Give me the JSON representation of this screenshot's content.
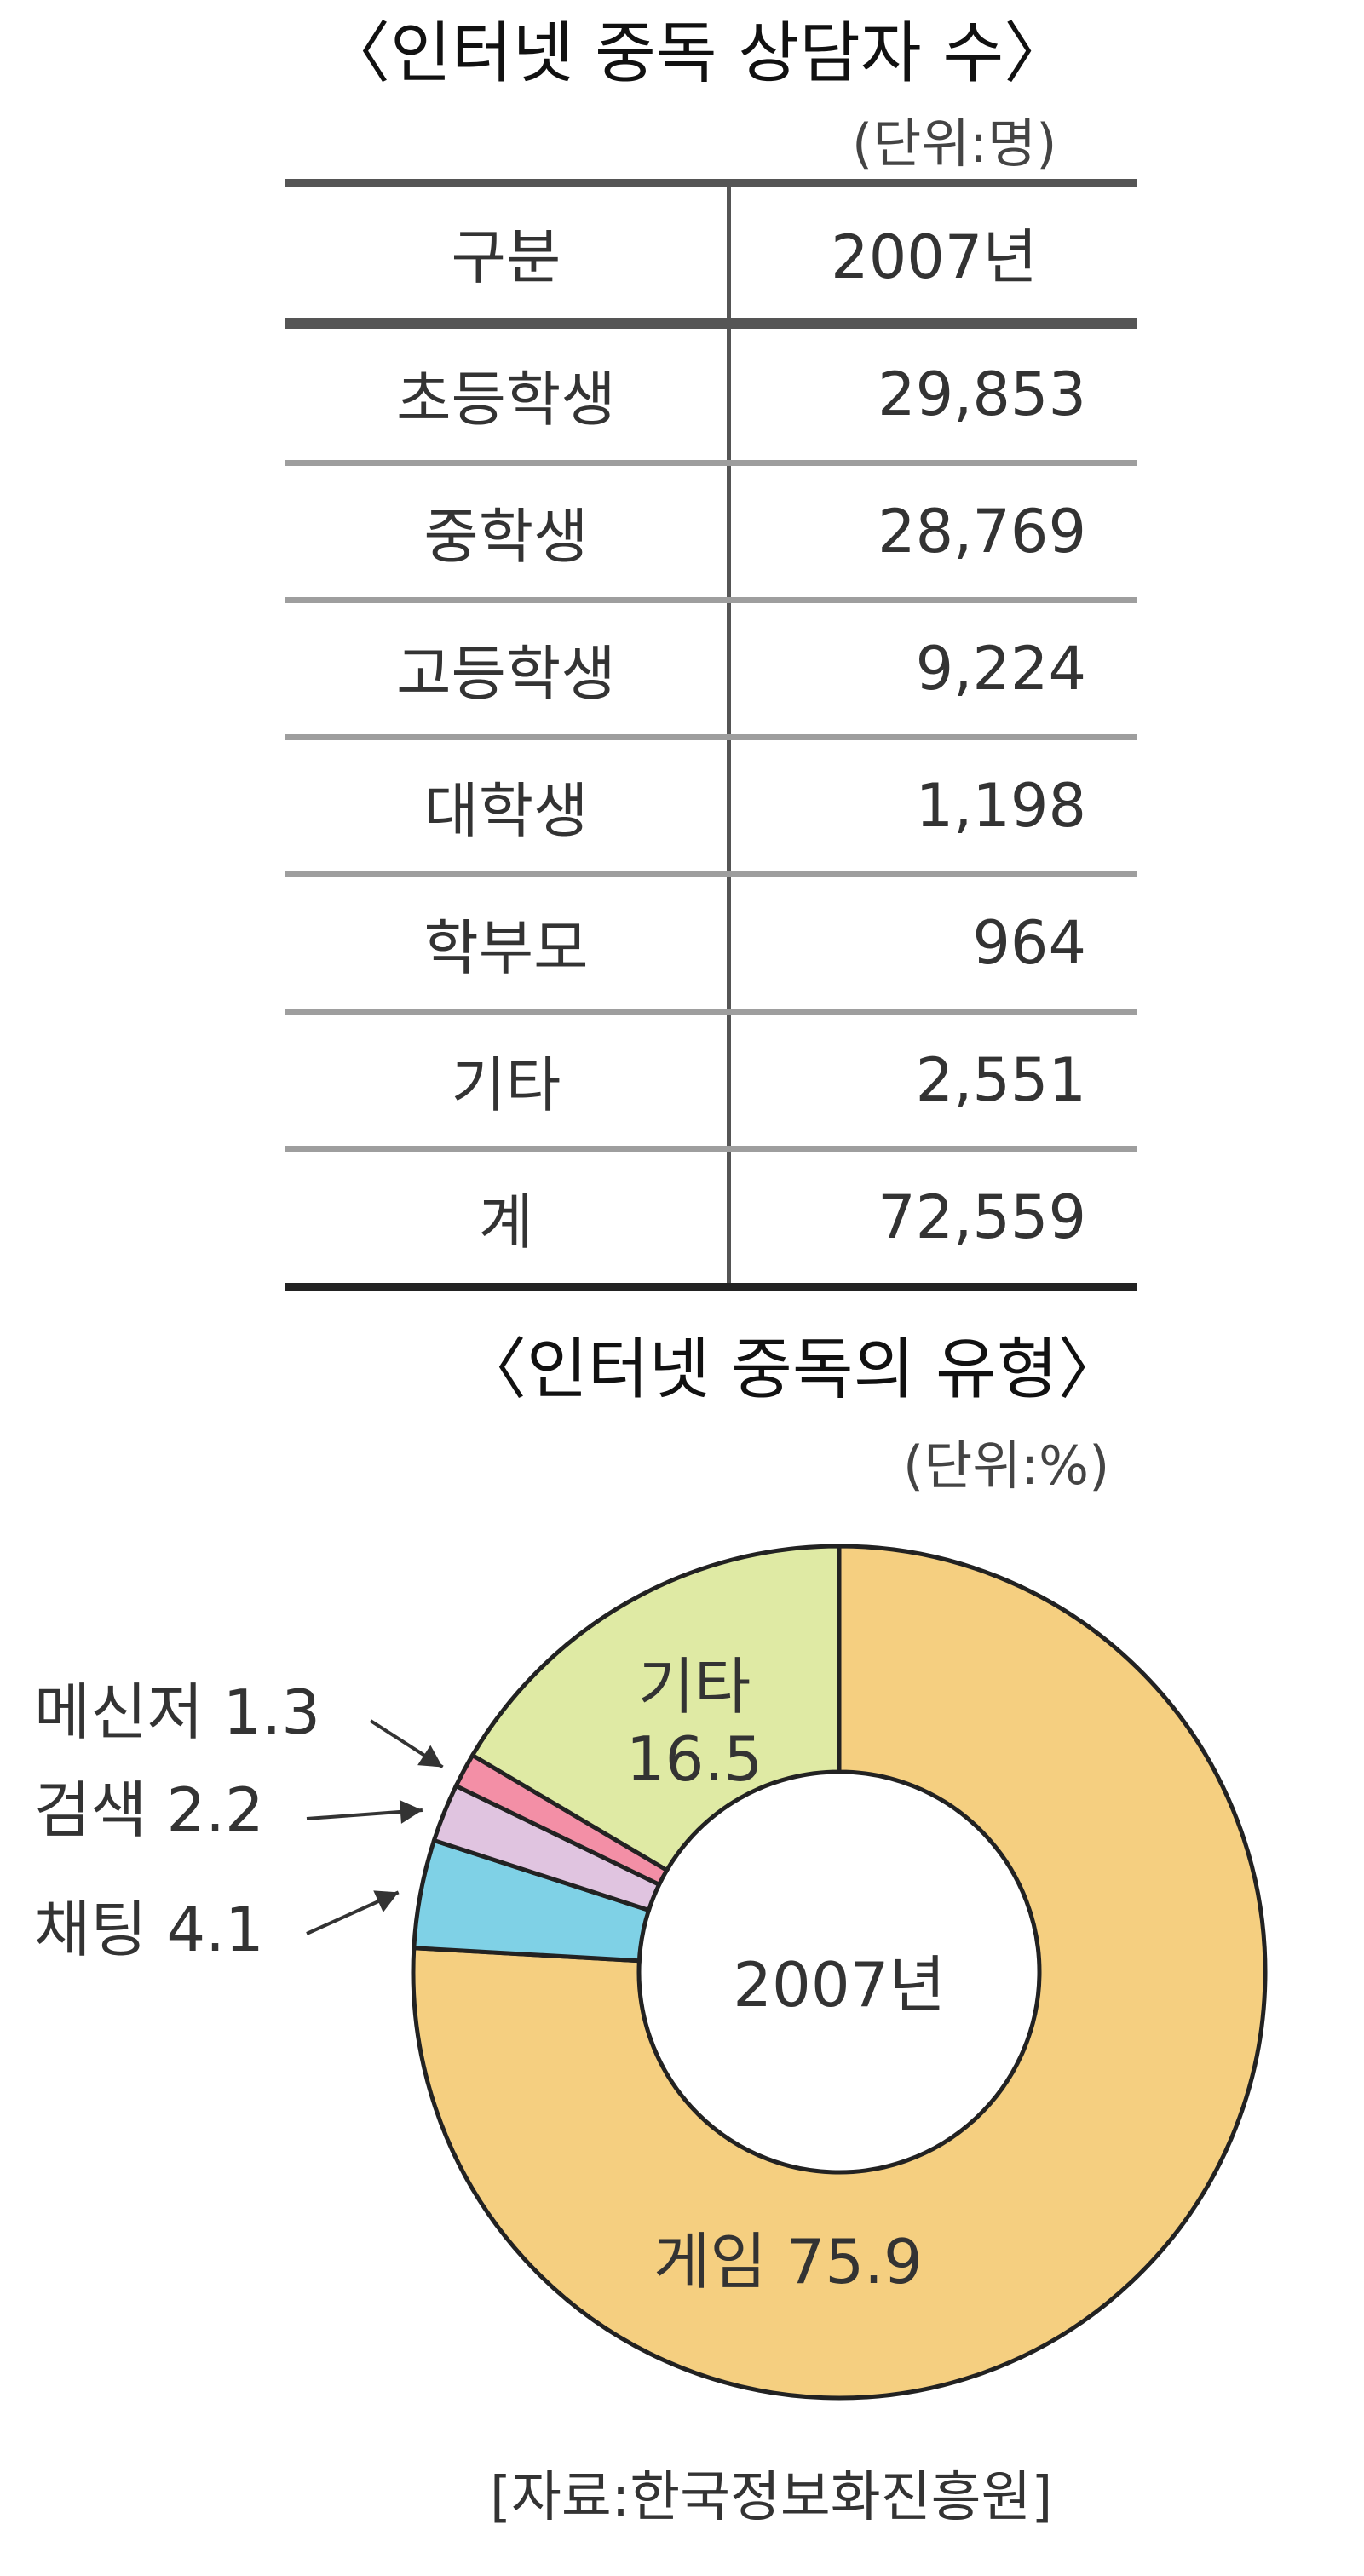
{
  "table": {
    "title": "〈인터넷 중독 상담자 수〉",
    "unit": "(단위:명)",
    "headers": [
      "구분",
      "2007년"
    ],
    "rows": [
      {
        "category": "초등학생",
        "value": "29,853"
      },
      {
        "category": "중학생",
        "value": "28,769"
      },
      {
        "category": "고등학생",
        "value": "9,224"
      },
      {
        "category": "대학생",
        "value": "1,198"
      },
      {
        "category": "학부모",
        "value": "964"
      },
      {
        "category": "기타",
        "value": "2,551"
      },
      {
        "category": "계",
        "value": "72,559"
      }
    ]
  },
  "pie": {
    "title": "〈인터넷 중독의 유형〉",
    "unit": "(단위:%)",
    "center_label": "2007년"
  },
  "source": "[자료:한국정보화진흥원]",
  "chart_data": [
    {
      "type": "table",
      "title": "〈인터넷 중독 상담자 수〉",
      "unit": "(단위:명)",
      "columns": [
        "구분",
        "2007년"
      ],
      "rows": [
        [
          "초등학생",
          29853
        ],
        [
          "중학생",
          28769
        ],
        [
          "고등학생",
          9224
        ],
        [
          "대학생",
          1198
        ],
        [
          "학부모",
          964
        ],
        [
          "기타",
          2551
        ],
        [
          "계",
          72559
        ]
      ]
    },
    {
      "type": "pie",
      "title": "〈인터넷 중독의 유형〉",
      "unit": "(단위:%)",
      "center_label": "2007년",
      "slices": [
        {
          "label": "게임",
          "value": 75.9,
          "color": "#f5cf80",
          "label_text": "게임 75.9"
        },
        {
          "label": "채팅",
          "value": 4.1,
          "color": "#7fd1e6",
          "label_text": "채팅 4.1"
        },
        {
          "label": "검색",
          "value": 2.2,
          "color": "#e0c4e0",
          "label_text": "검색 2.2"
        },
        {
          "label": "메신저",
          "value": 1.3,
          "color": "#f38fa6",
          "label_text": "메신저 1.3"
        },
        {
          "label": "기타",
          "value": 16.5,
          "color": "#dfeaa4",
          "label_text_lines": [
            "기타",
            "16.5"
          ]
        }
      ],
      "start": "top",
      "direction": "clockwise",
      "hole": true
    }
  ]
}
